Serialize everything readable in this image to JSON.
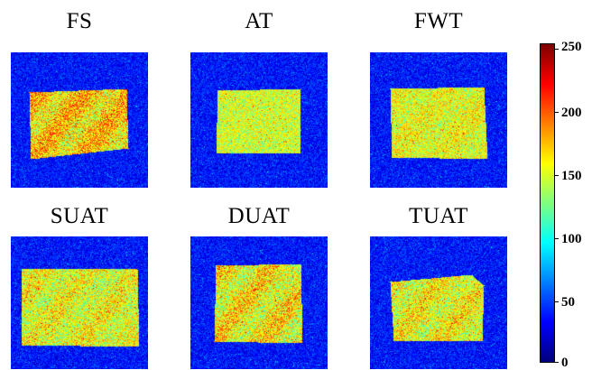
{
  "panels": [
    {
      "title": "FS",
      "variant": "fs"
    },
    {
      "title": "AT",
      "variant": "at"
    },
    {
      "title": "FWT",
      "variant": "fwt"
    },
    {
      "title": "SUAT",
      "variant": "suat"
    },
    {
      "title": "DUAT",
      "variant": "duat"
    },
    {
      "title": "TUAT",
      "variant": "tuat"
    }
  ],
  "colorbar": {
    "min": 0,
    "max": 255,
    "colormap": "jet",
    "ticks": [
      {
        "value": 250,
        "label": "250"
      },
      {
        "value": 200,
        "label": "200"
      },
      {
        "value": 150,
        "label": "150"
      },
      {
        "value": 100,
        "label": "100"
      },
      {
        "value": 50,
        "label": "50"
      },
      {
        "value": 0,
        "label": "0"
      }
    ]
  }
}
